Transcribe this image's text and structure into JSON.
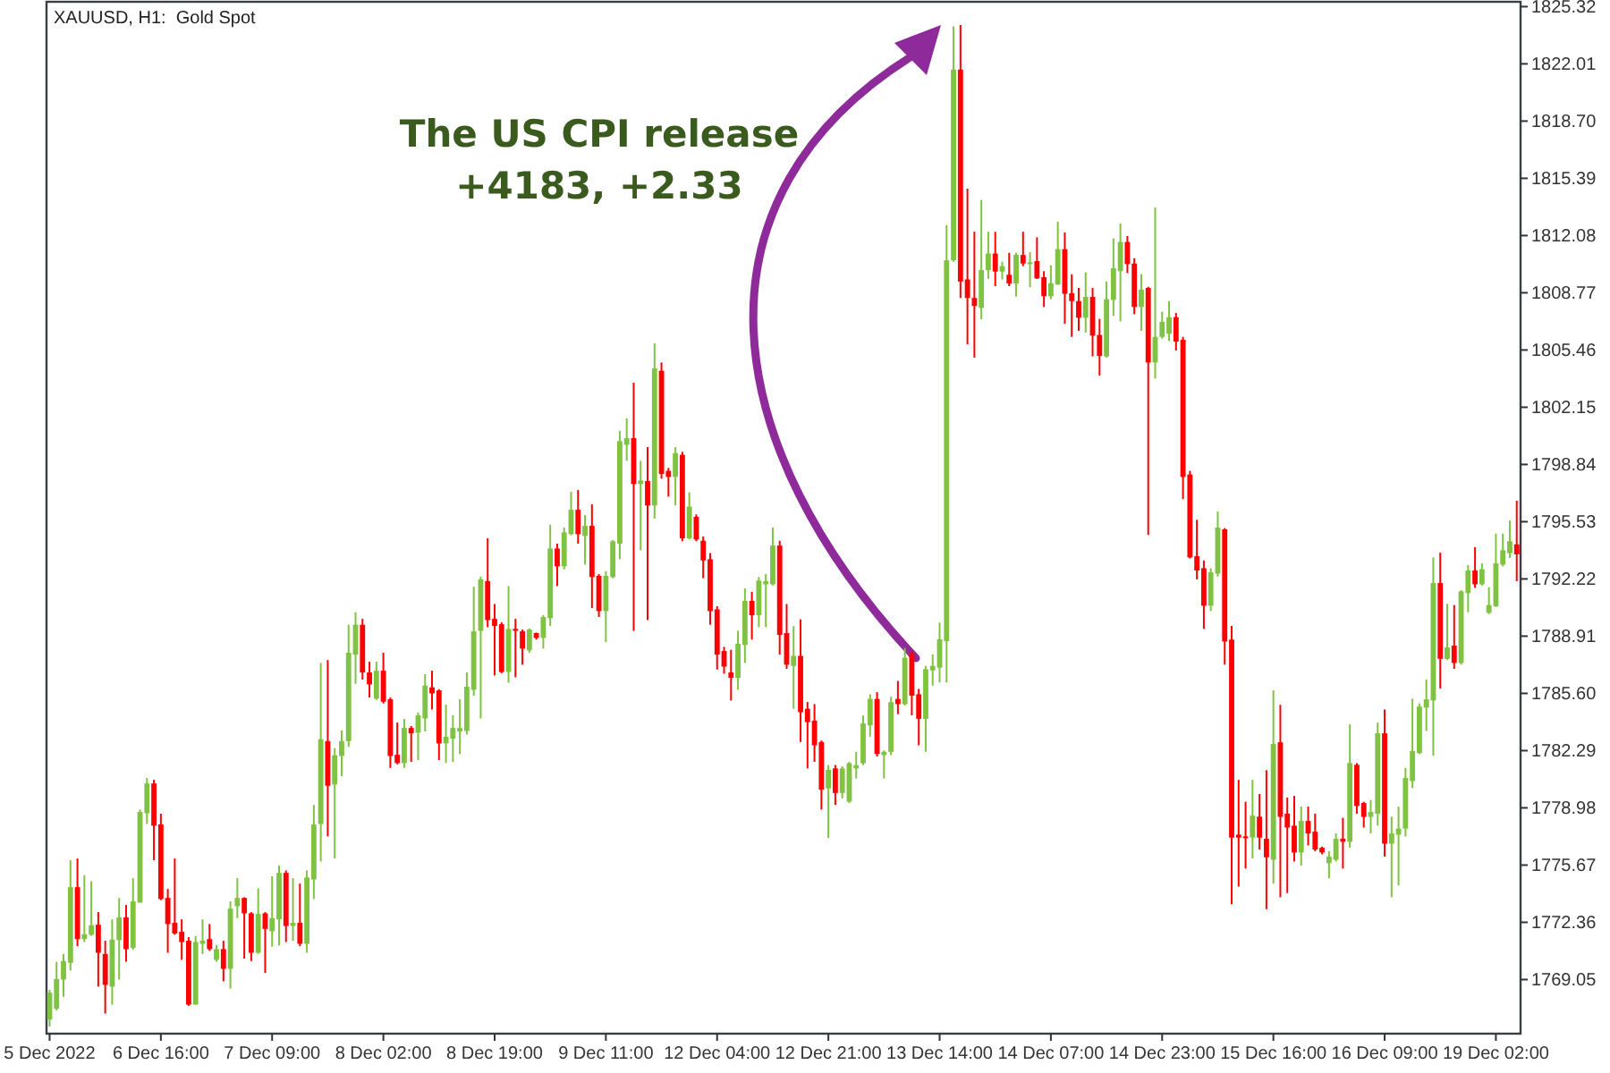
{
  "chart_data": {
    "type": "candlestick",
    "title": "XAUUSD, H1:  Gold Spot",
    "annotations": [
      "The US CPI release",
      "+4183, +2.33"
    ],
    "colors": [
      "#80c342",
      "#80c342",
      "#80c342",
      "#80c342",
      "#ff0000",
      "#80c342",
      "#80c342",
      "#ff0000",
      "#ff0000",
      "#80c342",
      "#80c342",
      "#ff0000",
      "#80c342",
      "#80c342",
      "#80c342",
      "#ff0000",
      "#ff0000",
      "#ff0000",
      "#ff0000",
      "#ff0000",
      "#ff0000",
      "#80c342",
      "#80c342",
      "#ff0000",
      "#80c342",
      "#ff0000",
      "#80c342",
      "#80c342",
      "#ff0000",
      "#ff0000",
      "#80c342",
      "#ff0000",
      "#80c342",
      "#80c342",
      "#ff0000",
      "#80c342",
      "#ff0000",
      "#80c342",
      "#80c342",
      "#80c342",
      "#ff0000",
      "#80c342",
      "#80c342",
      "#80c342",
      "#80c342",
      "#ff0000",
      "#ff0000",
      "#80c342",
      "#ff0000",
      "#ff0000",
      "#ff0000",
      "#80c342",
      "#ff0000",
      "#80c342",
      "#80c342",
      "#ff0000",
      "#ff0000",
      "#80c342",
      "#80c342",
      "#80c342",
      "#80c342",
      "#80c342",
      "#80c342",
      "#ff0000",
      "#ff0000",
      "#ff0000",
      "#80c342",
      "#ff0000",
      "#ff0000",
      "#80c342",
      "#ff0000",
      "#80c342",
      "#80c342",
      "#ff0000",
      "#80c342",
      "#80c342",
      "#ff0000",
      "#80c342",
      "#ff0000",
      "#ff0000",
      "#80c342",
      "#80c342",
      "#80c342",
      "#80c342",
      "#ff0000",
      "#80c342",
      "#ff0000",
      "#80c342",
      "#ff0000",
      "#ff0000",
      "#80c342",
      "#ff0000",
      "#80c342",
      "#ff0000",
      "#ff0000",
      "#ff0000",
      "#ff0000",
      "#ff0000",
      "#ff0000",
      "#80c342",
      "#80c342",
      "#ff0000",
      "#80c342",
      "#80c342",
      "#80c342",
      "#ff0000",
      "#ff0000",
      "#80c342",
      "#ff0000",
      "#ff0000",
      "#ff0000",
      "#ff0000",
      "#80c342",
      "#ff0000",
      "#80c342",
      "#80c342",
      "#80c342",
      "#80c342",
      "#80c342",
      "#ff0000",
      "#80c342",
      "#80c342",
      "#ff0000",
      "#80c342",
      "#ff0000",
      "#ff0000",
      "#80c342",
      "#80c342",
      "#80c342",
      "#80c342",
      "#80c342",
      "#ff0000",
      "#ff0000",
      "#ff0000",
      "#80c342",
      "#80c342",
      "#ff0000",
      "#80c342",
      "#ff0000",
      "#80c342",
      "#ff0000",
      "#80c342",
      "#ff0000",
      "#ff0000",
      "#80c342",
      "#80c342",
      "#ff0000",
      "#ff0000",
      "#ff0000",
      "#80c342",
      "#ff0000",
      "#ff0000",
      "#80c342",
      "#80c342",
      "#80c342",
      "#ff0000",
      "#ff0000",
      "#80c342",
      "#ff0000",
      "#80c342",
      "#80c342",
      "#80c342",
      "#ff0000",
      "#ff0000",
      "#ff0000",
      "#ff0000",
      "#ff0000",
      "#80c342",
      "#80c342",
      "#ff0000",
      "#ff0000",
      "#ff0000",
      "#ff0000",
      "#80c342",
      "#ff0000",
      "#ff0000",
      "#80c342",
      "#ff0000",
      "#ff0000",
      "#ff0000",
      "#80c342",
      "#ff0000",
      "#ff0000",
      "#ff0000",
      "#80c342",
      "#80c342",
      "#ff0000",
      "#80c342",
      "#ff0000",
      "#ff0000",
      "#80c342",
      "#80c342",
      "#ff0000",
      "#80c342",
      "#80c342",
      "#80c342",
      "#80c342",
      "#80c342",
      "#80c342",
      "#80c342",
      "#ff0000",
      "#80c342",
      "#ff0000",
      "#80c342",
      "#80c342",
      "#ff0000",
      "#80c342",
      "#80c342",
      "#80c342",
      "#80c342",
      "#80c342",
      "#ff0000"
    ],
    "ylim": [
      1765.92,
      1825.6
    ],
    "yticks": [
      1769.05,
      1772.36,
      1775.67,
      1778.98,
      1782.29,
      {
        "value": 1785.6,
        "label": "1785.60"
      },
      1788.91,
      1792.22,
      1795.53,
      1798.84,
      1802.15,
      1805.46,
      1808.77,
      1812.08,
      1815.39,
      {
        "value": 1818.7,
        "label": "1818.70"
      },
      1822.01,
      1825.32
    ],
    "categories": [
      "5 Dec 2022",
      null,
      null,
      null,
      null,
      null,
      null,
      null,
      null,
      null,
      null,
      null,
      null,
      null,
      null,
      null,
      "6 Dec 16:00",
      null,
      null,
      null,
      null,
      null,
      null,
      null,
      null,
      null,
      null,
      null,
      null,
      null,
      null,
      null,
      "7 Dec 09:00",
      null,
      null,
      null,
      null,
      null,
      null,
      null,
      null,
      null,
      null,
      null,
      null,
      null,
      null,
      null,
      "8 Dec 02:00",
      null,
      null,
      null,
      null,
      null,
      null,
      null,
      null,
      null,
      null,
      null,
      null,
      null,
      null,
      null,
      "8 Dec 19:00",
      null,
      null,
      null,
      null,
      null,
      null,
      null,
      null,
      null,
      null,
      null,
      null,
      null,
      null,
      null,
      "9 Dec 11:00",
      null,
      null,
      null,
      null,
      null,
      null,
      null,
      null,
      null,
      null,
      null,
      null,
      null,
      null,
      null,
      "12 Dec 04:00",
      null,
      null,
      null,
      null,
      null,
      null,
      null,
      null,
      null,
      null,
      null,
      null,
      null,
      null,
      null,
      "12 Dec 21:00",
      null,
      null,
      null,
      null,
      null,
      null,
      null,
      null,
      null,
      null,
      null,
      null,
      null,
      null,
      null,
      "13 Dec 14:00",
      null,
      null,
      null,
      null,
      null,
      null,
      null,
      null,
      null,
      null,
      null,
      null,
      null,
      null,
      null,
      "14 Dec 07:00",
      null,
      null,
      null,
      null,
      null,
      null,
      null,
      null,
      null,
      null,
      null,
      null,
      null,
      null,
      null,
      "14 Dec 23:00",
      null,
      null,
      null,
      null,
      null,
      null,
      null,
      null,
      null,
      null,
      null,
      null,
      null,
      null,
      null,
      "15 Dec 16:00",
      null,
      null,
      null,
      null,
      null,
      null,
      null,
      null,
      null,
      null,
      null,
      null,
      null,
      null,
      null,
      "16 Dec 09:00",
      null,
      null,
      null,
      null,
      null,
      null,
      null,
      null,
      null,
      null,
      null,
      null,
      null,
      null,
      null,
      "19 Dec 02:00",
      null,
      null,
      null
    ],
    "ohlc": [
      [
        1766.74,
        1768.46,
        1766.33,
        1768.29
      ],
      [
        1767.36,
        1770.08,
        1767.26,
        1769.08
      ],
      [
        1769.05,
        1770.53,
        1768.05,
        1770.12
      ],
      [
        1770.02,
        1775.95,
        1769.57,
        1774.39
      ],
      [
        1774.39,
        1776.05,
        1770.98,
        1771.39
      ],
      [
        1771.39,
        1775.08,
        1771.22,
        1771.67
      ],
      [
        1771.64,
        1774.74,
        1771.57,
        1772.19
      ],
      [
        1772.22,
        1772.95,
        1768.64,
        1770.6
      ],
      [
        1770.53,
        1771.29,
        1767.08,
        1768.74
      ],
      [
        1768.64,
        1772.53,
        1767.6,
        1771.36
      ],
      [
        1771.33,
        1773.77,
        1769.05,
        1772.64
      ],
      [
        1772.64,
        1773.36,
        1770.08,
        1770.81
      ],
      [
        1770.88,
        1774.91,
        1770.77,
        1773.57
      ],
      [
        1773.5,
        1778.88,
        1773.5,
        1778.74
      ],
      [
        1778.67,
        1780.71,
        1778.05,
        1780.39
      ],
      [
        1780.39,
        1780.6,
        1775.95,
        1777.95
      ],
      [
        1778.02,
        1778.64,
        1773.64,
        1773.71
      ],
      [
        1773.77,
        1774.29,
        1770.6,
        1772.26
      ],
      [
        1772.33,
        1776.05,
        1771.64,
        1771.71
      ],
      [
        1771.81,
        1772.53,
        1770.19,
        1771.22
      ],
      [
        1771.29,
        1771.5,
        1767.53,
        1767.6
      ],
      [
        1767.6,
        1771.57,
        1767.6,
        1771.22
      ],
      [
        1771.12,
        1772.53,
        1770.53,
        1771.29
      ],
      [
        1771.39,
        1772.26,
        1770.71,
        1770.81
      ],
      [
        1770.19,
        1771.05,
        1770.08,
        1770.81
      ],
      [
        1770.81,
        1771.29,
        1768.95,
        1769.67
      ],
      [
        1769.67,
        1773.57,
        1768.53,
        1773.15
      ],
      [
        1773.29,
        1774.91,
        1772.6,
        1773.77
      ],
      [
        1773.77,
        1773.81,
        1770.26,
        1772.88
      ],
      [
        1772.88,
        1772.95,
        1770.12,
        1770.6
      ],
      [
        1770.6,
        1774.33,
        1770.53,
        1772.84
      ],
      [
        1772.88,
        1772.95,
        1769.43,
        1771.98
      ],
      [
        1771.84,
        1775.02,
        1770.95,
        1772.6
      ],
      [
        1772.53,
        1775.64,
        1771.02,
        1775.22
      ],
      [
        1775.22,
        1775.36,
        1771.22,
        1772.15
      ],
      [
        1772.15,
        1774.91,
        1771.29,
        1772.33
      ],
      [
        1772.33,
        1774.6,
        1770.98,
        1771.12
      ],
      [
        1771.12,
        1775.36,
        1770.6,
        1774.95
      ],
      [
        1774.84,
        1779.15,
        1773.71,
        1778.02
      ],
      [
        1778.05,
        1787.36,
        1775.88,
        1782.95
      ],
      [
        1782.84,
        1787.53,
        1777.33,
        1780.26
      ],
      [
        1780.33,
        1782.43,
        1776.05,
        1782.02
      ],
      [
        1781.98,
        1783.46,
        1780.81,
        1782.84
      ],
      [
        1782.84,
        1789.57,
        1782.5,
        1787.95
      ],
      [
        1787.84,
        1790.29,
        1786.15,
        1789.57
      ],
      [
        1789.57,
        1789.91,
        1786.4,
        1786.81
      ],
      [
        1786.81,
        1787.43,
        1785.36,
        1786.12
      ],
      [
        1785.29,
        1787.43,
        1785.22,
        1786.91
      ],
      [
        1786.91,
        1787.95,
        1785.02,
        1785.12
      ],
      [
        1785.26,
        1785.36,
        1781.29,
        1781.98
      ],
      [
        1782.05,
        1783.91,
        1781.5,
        1781.57
      ],
      [
        1781.57,
        1784.12,
        1781.29,
        1783.6
      ],
      [
        1783.6,
        1783.71,
        1781.64,
        1783.29
      ],
      [
        1783.33,
        1784.5,
        1781.74,
        1784.33
      ],
      [
        1784.15,
        1786.71,
        1783.4,
        1786.05
      ],
      [
        1785.95,
        1786.91,
        1784.67,
        1785.6
      ],
      [
        1785.77,
        1785.84,
        1781.74,
        1782.71
      ],
      [
        1782.71,
        1784.95,
        1781.57,
        1783.09
      ],
      [
        1782.98,
        1784.33,
        1781.64,
        1783.6
      ],
      [
        1783.4,
        1785.26,
        1782.09,
        1783.6
      ],
      [
        1783.43,
        1786.81,
        1783.22,
        1785.98
      ],
      [
        1785.81,
        1791.77,
        1785.46,
        1789.19
      ],
      [
        1789.22,
        1792.36,
        1784.15,
        1792.19
      ],
      [
        1792.09,
        1794.57,
        1789.43,
        1789.84
      ],
      [
        1789.91,
        1790.77,
        1786.64,
        1789.5
      ],
      [
        1789.6,
        1789.71,
        1786.77,
        1786.84
      ],
      [
        1786.84,
        1791.81,
        1786.22,
        1789.33
      ],
      [
        1789.33,
        1789.91,
        1786.53,
        1789.22
      ],
      [
        1789.19,
        1789.29,
        1787.26,
        1788.19
      ],
      [
        1788.09,
        1789.36,
        1787.95,
        1789.29
      ],
      [
        1789.09,
        1789.12,
        1788.71,
        1788.81
      ],
      [
        1788.81,
        1790.12,
        1788.19,
        1790.02
      ],
      [
        1789.95,
        1795.36,
        1789.5,
        1793.98
      ],
      [
        1793.98,
        1794.26,
        1791.81,
        1792.95
      ],
      [
        1792.95,
        1795.19,
        1792.77,
        1794.91
      ],
      [
        1794.81,
        1797.26,
        1794.74,
        1796.22
      ],
      [
        1796.22,
        1797.36,
        1794.26,
        1794.81
      ],
      [
        1794.71,
        1795.91,
        1793.05,
        1795.29
      ],
      [
        1795.29,
        1796.53,
        1790.53,
        1792.33
      ],
      [
        1792.4,
        1792.5,
        1790.02,
        1790.36
      ],
      [
        1790.36,
        1792.67,
        1788.57,
        1792.4
      ],
      [
        1792.33,
        1794.47,
        1792.26,
        1794.4
      ],
      [
        1794.26,
        1800.78,
        1793.36,
        1800.19
      ],
      [
        1799.98,
        1801.5,
        1799.05,
        1800.36
      ],
      [
        1800.36,
        1803.57,
        1789.22,
        1797.71
      ],
      [
        1797.71,
        1799.05,
        1793.88,
        1797.91
      ],
      [
        1797.88,
        1799.84,
        1789.84,
        1796.47
      ],
      [
        1796.47,
        1805.84,
        1795.71,
        1804.4
      ],
      [
        1804.26,
        1804.74,
        1798.02,
        1798.29
      ],
      [
        1798.47,
        1798.64,
        1796.98,
        1798.12
      ],
      [
        1798.12,
        1799.84,
        1796.47,
        1799.5
      ],
      [
        1799.4,
        1799.57,
        1794.4,
        1794.57
      ],
      [
        1794.57,
        1797.22,
        1794.5,
        1796.4
      ],
      [
        1795.81,
        1795.95,
        1794.4,
        1794.5
      ],
      [
        1794.43,
        1794.67,
        1792.26,
        1793.29
      ],
      [
        1793.36,
        1793.71,
        1789.57,
        1790.36
      ],
      [
        1790.46,
        1790.64,
        1786.98,
        1787.84
      ],
      [
        1788.05,
        1788.29,
        1786.74,
        1787.15
      ],
      [
        1786.81,
        1788.12,
        1785.19,
        1786.5
      ],
      [
        1786.5,
        1789.22,
        1785.81,
        1788.47
      ],
      [
        1788.4,
        1791.67,
        1787.36,
        1790.95
      ],
      [
        1790.95,
        1791.47,
        1788.71,
        1790.12
      ],
      [
        1790.12,
        1792.33,
        1789.43,
        1792.12
      ],
      [
        1791.91,
        1792.5,
        1789.43,
        1792.09
      ],
      [
        1791.91,
        1795.19,
        1791.84,
        1794.15
      ],
      [
        1794.15,
        1794.43,
        1787.84,
        1788.98
      ],
      [
        1789.09,
        1790.77,
        1787.02,
        1787.26
      ],
      [
        1787.19,
        1789.49,
        1784.71,
        1787.77
      ],
      [
        1787.77,
        1789.88,
        1782.79,
        1784.51
      ],
      [
        1784.71,
        1785.1,
        1781.26,
        1783.94
      ],
      [
        1784.02,
        1784.98,
        1781.64,
        1782.6
      ],
      [
        1782.79,
        1782.87,
        1778.88,
        1780.03
      ],
      [
        1780.11,
        1781.46,
        1777.24,
        1781.18
      ],
      [
        1781.26,
        1781.46,
        1779.15,
        1779.84
      ],
      [
        1779.84,
        1781.38,
        1779.53,
        1781.26
      ],
      [
        1779.34,
        1781.64,
        1779.26,
        1781.56
      ],
      [
        1781.26,
        1782.22,
        1780.68,
        1781.45
      ],
      [
        1781.56,
        1784.32,
        1781.45,
        1783.86
      ],
      [
        1783.75,
        1785.55,
        1783.1,
        1785.28
      ],
      [
        1785.28,
        1785.67,
        1781.95,
        1782.1
      ],
      [
        1782.03,
        1782.3,
        1780.68,
        1782.22
      ],
      [
        1782.22,
        1785.4,
        1782.03,
        1785.09
      ],
      [
        1785.28,
        1786.32,
        1784.4,
        1784.98
      ],
      [
        1784.98,
        1788.23,
        1784.9,
        1787.66
      ],
      [
        1787.85,
        1788.08,
        1784.33,
        1785.47
      ],
      [
        1785.55,
        1785.86,
        1782.6,
        1784.13
      ],
      [
        1784.13,
        1787.19,
        1782.22,
        1787.0
      ],
      [
        1786.93,
        1787.85,
        1786.05,
        1787.19
      ],
      [
        1787.09,
        1789.69,
        1786.23,
        1788.73
      ],
      [
        1788.62,
        1812.68,
        1786.23,
        1810.65
      ],
      [
        1810.65,
        1824.18,
        1810.57,
        1821.68
      ],
      [
        1821.68,
        1824.26,
        1808.47,
        1809.42
      ],
      [
        1809.54,
        1814.79,
        1805.79,
        1808.47
      ],
      [
        1808.47,
        1812.3,
        1805.02,
        1808.01
      ],
      [
        1807.89,
        1814.14,
        1807.24,
        1810.08
      ],
      [
        1810.08,
        1812.3,
        1809.58,
        1811.04
      ],
      [
        1811.04,
        1812.3,
        1809.15,
        1810.0
      ],
      [
        1810.0,
        1810.57,
        1809.54,
        1810.31
      ],
      [
        1809.81,
        1811.08,
        1809.15,
        1809.31
      ],
      [
        1809.31,
        1811.08,
        1808.55,
        1810.96
      ],
      [
        1810.96,
        1812.3,
        1810.31,
        1810.46
      ],
      [
        1810.43,
        1811.12,
        1809.09,
        1810.53
      ],
      [
        1810.6,
        1811.98,
        1809.57,
        1809.6
      ],
      [
        1809.67,
        1810.02,
        1807.95,
        1808.57
      ],
      [
        1808.57,
        1810.36,
        1808.4,
        1809.33
      ],
      [
        1809.26,
        1812.88,
        1809.22,
        1811.29
      ],
      [
        1811.29,
        1812.26,
        1806.98,
        1808.71
      ],
      [
        1808.74,
        1809.84,
        1806.22,
        1808.29
      ],
      [
        1808.29,
        1809.05,
        1806.57,
        1807.33
      ],
      [
        1807.33,
        1809.95,
        1806.47,
        1808.53
      ],
      [
        1808.53,
        1809.05,
        1805.09,
        1806.29
      ],
      [
        1806.33,
        1807.26,
        1803.98,
        1805.12
      ],
      [
        1805.09,
        1809.43,
        1805.02,
        1808.4
      ],
      [
        1808.36,
        1811.91,
        1807.43,
        1810.19
      ],
      [
        1810.02,
        1812.78,
        1807.12,
        1811.71
      ],
      [
        1811.71,
        1812.05,
        1809.91,
        1810.43
      ],
      [
        1810.46,
        1810.77,
        1807.53,
        1807.95
      ],
      [
        1807.95,
        1809.84,
        1806.57,
        1808.95
      ],
      [
        1809.05,
        1809.12,
        1794.77,
        1804.74
      ],
      [
        1804.74,
        1813.71,
        1803.81,
        1806.22
      ],
      [
        1806.22,
        1807.67,
        1806.12,
        1807.09
      ],
      [
        1806.4,
        1808.29,
        1805.98,
        1807.36
      ],
      [
        1807.36,
        1807.6,
        1805.43,
        1805.95
      ],
      [
        1806.05,
        1806.22,
        1796.84,
        1798.12
      ],
      [
        1798.26,
        1798.47,
        1793.4,
        1793.47
      ],
      [
        1793.53,
        1795.64,
        1792.19,
        1792.71
      ],
      [
        1792.84,
        1793.29,
        1789.33,
        1790.67
      ],
      [
        1790.67,
        1792.84,
        1790.36,
        1792.6
      ],
      [
        1792.53,
        1796.12,
        1792.36,
        1795.19
      ],
      [
        1795.09,
        1795.16,
        1787.26,
        1788.6
      ],
      [
        1788.71,
        1789.5,
        1773.4,
        1777.26
      ],
      [
        1777.43,
        1780.6,
        1774.43,
        1777.26
      ],
      [
        1777.33,
        1779.33,
        1775.47,
        1777.26
      ],
      [
        1777.26,
        1780.6,
        1776.05,
        1778.53
      ],
      [
        1778.47,
        1779.78,
        1776.57,
        1777.26
      ],
      [
        1777.19,
        1781.16,
        1773.12,
        1776.12
      ],
      [
        1775.98,
        1785.78,
        1774.6,
        1782.67
      ],
      [
        1782.77,
        1784.94,
        1773.81,
        1778.46
      ],
      [
        1778.64,
        1779.57,
        1774.05,
        1777.84
      ],
      [
        1777.95,
        1779.67,
        1775.88,
        1776.4
      ],
      [
        1776.4,
        1779.05,
        1775.64,
        1778.22
      ],
      [
        1778.22,
        1779.05,
        1776.81,
        1777.5
      ],
      [
        1777.6,
        1778.64,
        1776.47,
        1776.57
      ],
      [
        1776.67,
        1776.74,
        1776.29,
        1776.4
      ],
      [
        1775.78,
        1776.47,
        1774.9,
        1776.16
      ],
      [
        1775.98,
        1777.5,
        1775.88,
        1777.19
      ],
      [
        1777.19,
        1778.4,
        1775.47,
        1777.02
      ],
      [
        1777.02,
        1783.81,
        1776.67,
        1781.57
      ],
      [
        1781.47,
        1781.57,
        1778.64,
        1779.09
      ],
      [
        1779.26,
        1779.33,
        1777.84,
        1778.46
      ],
      [
        1778.46,
        1779.43,
        1777.5,
        1778.74
      ],
      [
        1778.64,
        1783.91,
        1777.95,
        1783.29
      ],
      [
        1783.29,
        1784.67,
        1776.16,
        1776.91
      ],
      [
        1776.91,
        1778.47,
        1773.81,
        1777.5
      ],
      [
        1777.43,
        1779.05,
        1774.5,
        1777.78
      ],
      [
        1777.78,
        1781.29,
        1777.33,
        1780.71
      ],
      [
        1780.53,
        1785.29,
        1780.12,
        1782.26
      ],
      [
        1782.15,
        1785.02,
        1782.09,
        1784.84
      ],
      [
        1784.78,
        1786.4,
        1783.43,
        1785.26
      ],
      [
        1785.19,
        1793.46,
        1782.0,
        1791.98
      ],
      [
        1791.98,
        1793.74,
        1785.88,
        1787.6
      ],
      [
        1787.6,
        1790.78,
        1787.53,
        1788.26
      ],
      [
        1788.36,
        1790.71,
        1787.02,
        1787.36
      ],
      [
        1787.36,
        1791.57,
        1787.26,
        1791.5
      ],
      [
        1791.4,
        1793.02,
        1790.29,
        1792.71
      ],
      [
        1792.71,
        1794.05,
        1791.71,
        1791.91
      ],
      [
        1791.91,
        1793.12,
        1791.84,
        1792.78
      ],
      [
        1790.26,
        1791.74,
        1790.19,
        1790.71
      ],
      [
        1790.64,
        1794.84,
        1790.6,
        1793.12
      ],
      [
        1793.05,
        1794.84,
        1792.95,
        1793.88
      ],
      [
        1793.71,
        1795.6,
        1793.43,
        1794.4
      ],
      [
        1794.22,
        1796.74,
        1792.09,
        1793.64
      ]
    ]
  }
}
